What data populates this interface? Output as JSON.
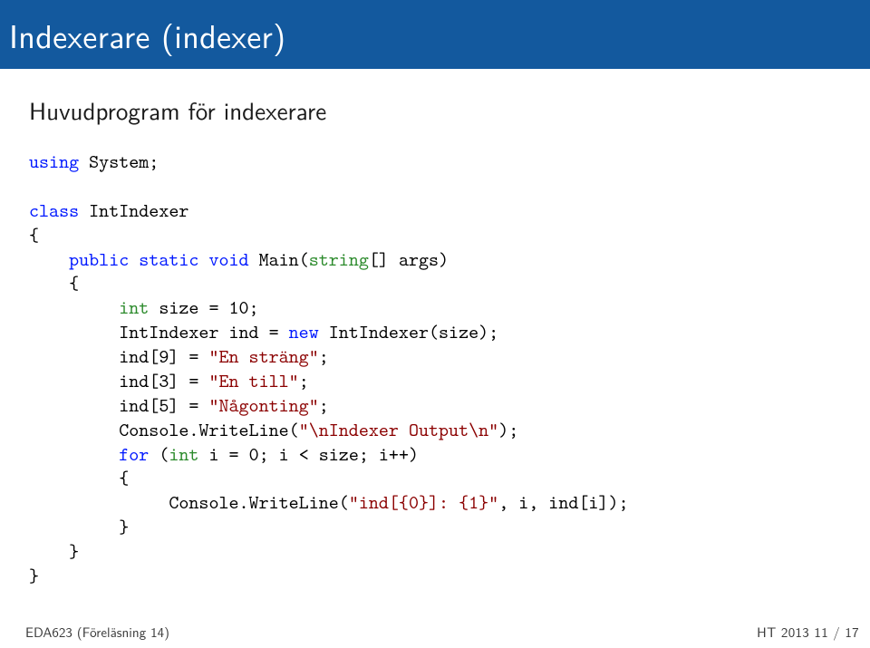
{
  "title": "Indexerare (indexer)",
  "subtitle": "Huvudprogram för indexerare",
  "code": {
    "l1_kw": "using",
    "l1_rest": " System;",
    "l2_kw": "class",
    "l2_rest": " IntIndexer",
    "l3": "{",
    "l4_pre": "    ",
    "l4_kw1": "public",
    "l4_kw2": " static",
    "l4_kw3": " void",
    "l4_rest": " Main(",
    "l4_type": "string",
    "l4_rest2": "[] args)",
    "l5": "    {",
    "l6_pre": "         ",
    "l6_type": "int",
    "l6_rest": " size = 10;",
    "l7": "         IntIndexer ind = ",
    "l7_kw": "new",
    "l7_rest": " IntIndexer(size);",
    "l8": "         ind[9] = ",
    "l8_str": "\"En sträng\"",
    "l8_end": ";",
    "l9": "         ind[3] = ",
    "l9_str": "\"En till\"",
    "l9_end": ";",
    "l10": "         ind[5] = ",
    "l10_str": "\"Någonting\"",
    "l10_end": ";",
    "l11": "         Console.WriteLine(",
    "l11_str": "\"\\nIndexer Output\\n\"",
    "l11_end": ");",
    "l12_pre": "         ",
    "l12_kw": "for",
    "l12_rest": " (",
    "l12_type": "int",
    "l12_rest2": " i = 0; i < size; i++)",
    "l13": "         {",
    "l14": "              Console.WriteLine(",
    "l14_str": "\"ind[{0}]: {1}\"",
    "l14_end": ", i, ind[i]);",
    "l15": "         }",
    "l16": "    }",
    "l17": "}"
  },
  "footer": {
    "left": "EDA623 (Föreläsning 14)",
    "right": "HT 2013     11 / 17"
  },
  "colors": {
    "title_bg": "#13599e",
    "title_fg": "#ffffff",
    "keyword": "#0018ff",
    "type": "#2b8a2b",
    "string": "#8b0000",
    "text": "#000000",
    "footer_text": "#3a3a3a"
  }
}
